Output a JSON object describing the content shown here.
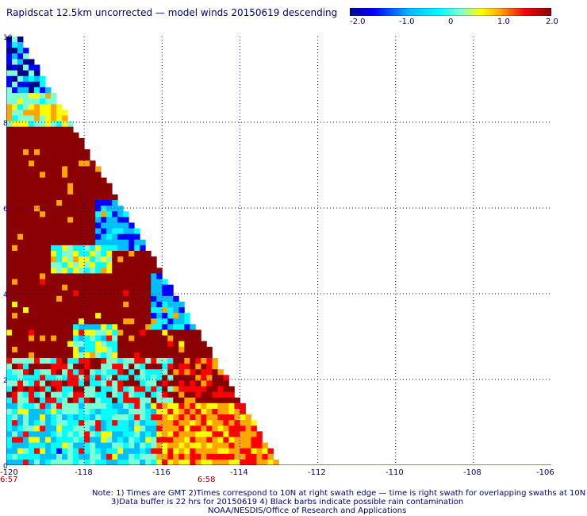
{
  "title": "Rapidscat 12.5km uncorrected — model winds 20150619 descending",
  "colorbar": {
    "labels": [
      "-2.0",
      "-1.0",
      "0",
      "1.0",
      "2.0"
    ],
    "values": [
      -2.0,
      -1.0,
      0,
      1.0,
      2.0
    ],
    "stops": [
      "#00008b",
      "#0000ff",
      "#00bfff",
      "#00ffff",
      "#7fffd4",
      "#ffff00",
      "#ffa500",
      "#ff0000",
      "#8b0000"
    ]
  },
  "map": {
    "lon_range": [
      -120,
      -106
    ],
    "lat_range": [
      0,
      10
    ],
    "x_ticks": [
      "-120",
      "-118",
      "-116",
      "-114",
      "-112",
      "-110",
      "-108",
      "-106"
    ],
    "y_ticks": [
      "0",
      "2",
      "4",
      "6",
      "8",
      "10"
    ],
    "times": {
      "left": "6:57",
      "right": "6:58"
    },
    "grid": true
  },
  "notes": {
    "line1": "Note: 1) Times are GMT 2)Times correspond to 10N at right swath edge — time is right swath for overlapping swaths at 10N",
    "line2": "3)Data buffer is 22 hrs for 20150619 4) Black barbs indicate possible rain contamination",
    "line3": "NOAA/NESDIS/Office of Research and Applications"
  }
}
